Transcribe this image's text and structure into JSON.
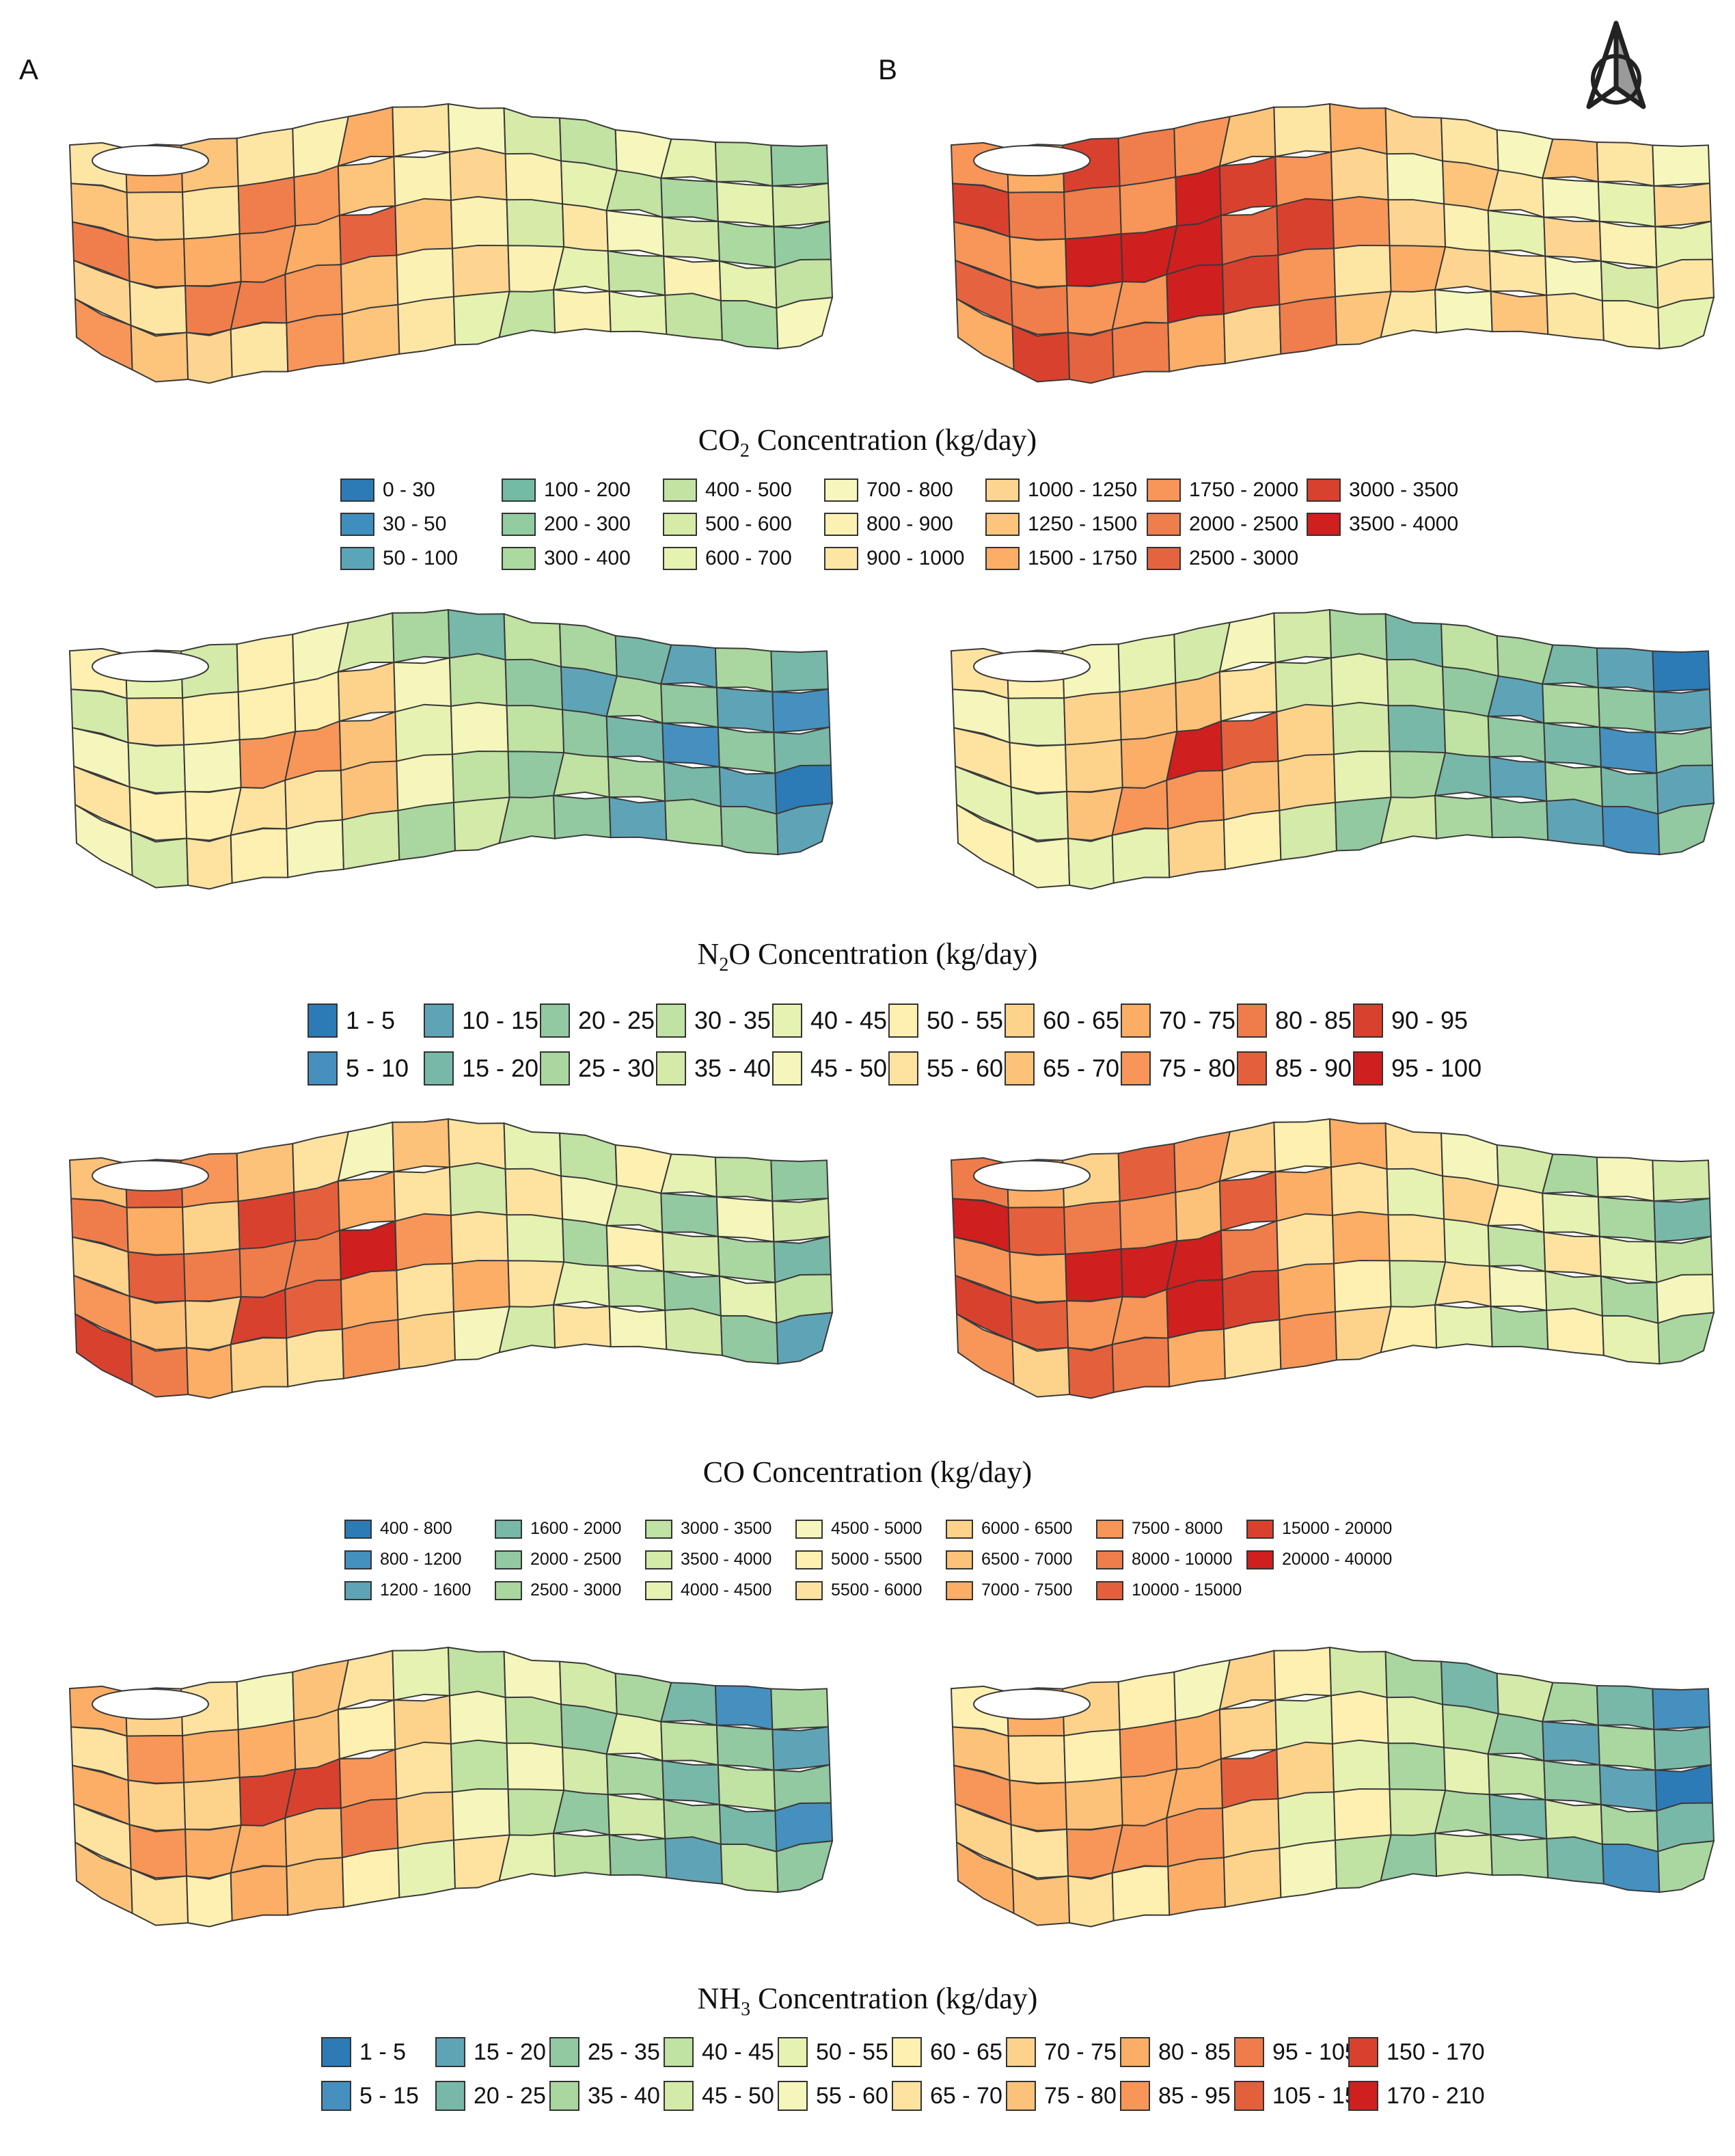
{
  "panels": {
    "a": "A",
    "b": "B"
  },
  "north_arrow_icon": "north-arrow-icon",
  "sections": [
    {
      "id": "co2",
      "title_pre": "CO",
      "title_sub": "2",
      "title_post": " Concentration (kg/day)",
      "legend_rows": 3,
      "legend": [
        {
          "label": "0 - 30",
          "color": "#2c7bb6"
        },
        {
          "label": "30 - 50",
          "color": "#3e8fbe"
        },
        {
          "label": "50 - 100",
          "color": "#5aa5b8"
        },
        {
          "label": "100 - 200",
          "color": "#74bba6"
        },
        {
          "label": "200 - 300",
          "color": "#93cca1"
        },
        {
          "label": "300 - 400",
          "color": "#abd9a0"
        },
        {
          "label": "400 - 500",
          "color": "#c2e3a2"
        },
        {
          "label": "500 - 600",
          "color": "#d6eba8"
        },
        {
          "label": "600 - 700",
          "color": "#e6f2b0"
        },
        {
          "label": "700 - 800",
          "color": "#f6f7bc"
        },
        {
          "label": "800 - 900",
          "color": "#fbf1b2"
        },
        {
          "label": "900 - 1000",
          "color": "#fde6a4"
        },
        {
          "label": "1000 - 1250",
          "color": "#fdd590"
        },
        {
          "label": "1250 - 1500",
          "color": "#fdc47c"
        },
        {
          "label": "1500 - 1750",
          "color": "#fcae66"
        },
        {
          "label": "1750 - 2000",
          "color": "#f79658"
        },
        {
          "label": "2000 - 2500",
          "color": "#ef7e4c"
        },
        {
          "label": "2500 - 3000",
          "color": "#e5643f"
        },
        {
          "label": "3000 - 3500",
          "color": "#d9412f"
        },
        {
          "label": "3500 - 4000",
          "color": "#cf1f1f"
        }
      ]
    },
    {
      "id": "n2o",
      "title_pre": "N",
      "title_sub": "2",
      "title_post": "O Concentration (kg/day)",
      "legend_rows": 2,
      "legend": [
        {
          "label": "1 - 5",
          "color": "#2c7bb6"
        },
        {
          "label": "5 - 10",
          "color": "#4590bf"
        },
        {
          "label": "10 - 15",
          "color": "#5fa4b6"
        },
        {
          "label": "15 - 20",
          "color": "#78b8a8"
        },
        {
          "label": "20 - 25",
          "color": "#92c9a0"
        },
        {
          "label": "25 - 30",
          "color": "#aad7a0"
        },
        {
          "label": "30 - 35",
          "color": "#c0e2a2"
        },
        {
          "label": "35 - 40",
          "color": "#d4eaa8"
        },
        {
          "label": "40 - 45",
          "color": "#e6f2b2"
        },
        {
          "label": "45 - 50",
          "color": "#f5f6bb"
        },
        {
          "label": "50 - 55",
          "color": "#fdf0b0"
        },
        {
          "label": "55 - 60",
          "color": "#fee3a0"
        },
        {
          "label": "60 - 65",
          "color": "#fdd38c"
        },
        {
          "label": "65 - 70",
          "color": "#fdc279"
        },
        {
          "label": "70 - 75",
          "color": "#fcae66"
        },
        {
          "label": "75 - 80",
          "color": "#f79658"
        },
        {
          "label": "80 - 85",
          "color": "#ef7d4b"
        },
        {
          "label": "85 - 90",
          "color": "#e4603d"
        },
        {
          "label": "90 - 95",
          "color": "#d9412f"
        },
        {
          "label": "95 - 100",
          "color": "#cf1f1f"
        }
      ]
    },
    {
      "id": "co",
      "title_pre": "CO Concentration (kg/day)",
      "title_sub": "",
      "title_post": "",
      "legend_rows": 3,
      "legend": [
        {
          "label": "400 - 800",
          "color": "#2c7bb6"
        },
        {
          "label": "800 - 1200",
          "color": "#4590bf"
        },
        {
          "label": "1200 - 1600",
          "color": "#5fa4b6"
        },
        {
          "label": "1600 - 2000",
          "color": "#78b8a8"
        },
        {
          "label": "2000 - 2500",
          "color": "#92c9a0"
        },
        {
          "label": "2500 - 3000",
          "color": "#aad7a0"
        },
        {
          "label": "3000 - 3500",
          "color": "#c0e2a2"
        },
        {
          "label": "3500 - 4000",
          "color": "#d4eaa8"
        },
        {
          "label": "4000 - 4500",
          "color": "#e6f2b2"
        },
        {
          "label": "4500 - 5000",
          "color": "#f5f6bb"
        },
        {
          "label": "5000 - 5500",
          "color": "#fdf0b0"
        },
        {
          "label": "5500 - 6000",
          "color": "#fee3a0"
        },
        {
          "label": "6000 - 6500",
          "color": "#fdd38c"
        },
        {
          "label": "6500 - 7000",
          "color": "#fdc279"
        },
        {
          "label": "7000 - 7500",
          "color": "#fcae66"
        },
        {
          "label": "7500 - 8000",
          "color": "#f79658"
        },
        {
          "label": "8000 - 10000",
          "color": "#ef7d4b"
        },
        {
          "label": "10000 - 15000",
          "color": "#e4603d"
        },
        {
          "label": "15000 - 20000",
          "color": "#d9412f"
        },
        {
          "label": "20000 - 40000",
          "color": "#cf1f1f"
        }
      ]
    },
    {
      "id": "nh3",
      "title_pre": "NH",
      "title_sub": "3",
      "title_post": " Concentration (kg/day)",
      "legend_rows": 2,
      "legend": [
        {
          "label": "1 - 5",
          "color": "#2c7bb6"
        },
        {
          "label": "5 - 15",
          "color": "#4590bf"
        },
        {
          "label": "15 - 20",
          "color": "#5fa4b6"
        },
        {
          "label": "20 - 25",
          "color": "#78b8a8"
        },
        {
          "label": "25 - 35",
          "color": "#92c9a0"
        },
        {
          "label": "35 - 40",
          "color": "#aad7a0"
        },
        {
          "label": "40 - 45",
          "color": "#c0e2a2"
        },
        {
          "label": "45 - 50",
          "color": "#d4eaa8"
        },
        {
          "label": "50 - 55",
          "color": "#e6f2b2"
        },
        {
          "label": "55 - 60",
          "color": "#f5f6bb"
        },
        {
          "label": "60 - 65",
          "color": "#fdf0b0"
        },
        {
          "label": "65 - 70",
          "color": "#fee3a0"
        },
        {
          "label": "70 - 75",
          "color": "#fdd38c"
        },
        {
          "label": "75 - 80",
          "color": "#fdc279"
        },
        {
          "label": "80 - 85",
          "color": "#fcae66"
        },
        {
          "label": "85 - 95",
          "color": "#f79658"
        },
        {
          "label": "95 - 105",
          "color": "#ef7d4b"
        },
        {
          "label": "105 - 150",
          "color": "#e4603d"
        },
        {
          "label": "150 - 170",
          "color": "#d9412f"
        },
        {
          "label": "170 - 210",
          "color": "#cf1f1f"
        }
      ]
    }
  ]
}
